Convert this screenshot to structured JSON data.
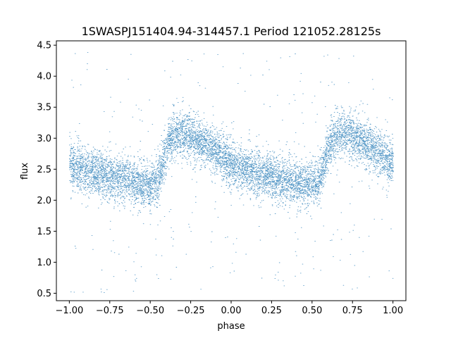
{
  "chart_data": {
    "type": "scatter",
    "title": "1SWASPJ151404.94-314457.1 Period 121052.28125s",
    "xlabel": "phase",
    "ylabel": "flux",
    "xlim": [
      -1.08,
      1.08
    ],
    "ylim": [
      0.38,
      4.57
    ],
    "xticks": [
      -1.0,
      -0.75,
      -0.5,
      -0.25,
      0.0,
      0.25,
      0.5,
      0.75,
      1.0
    ],
    "xtick_labels": [
      "−1.00",
      "−0.75",
      "−0.50",
      "−0.25",
      "0.00",
      "0.25",
      "0.50",
      "0.75",
      "1.00"
    ],
    "yticks": [
      0.5,
      1.0,
      1.5,
      2.0,
      2.5,
      3.0,
      3.5,
      4.0,
      4.5
    ],
    "ytick_labels": [
      "0.5",
      "1.0",
      "1.5",
      "2.0",
      "2.5",
      "3.0",
      "3.5",
      "4.0",
      "4.5"
    ],
    "grid": false,
    "legend": "none",
    "point_color": "#1f77b4",
    "x_range_of_points": [
      -1.0,
      1.0
    ],
    "mean_curve_points": [
      {
        "x": -1.0,
        "y": 2.6
      },
      {
        "x": -0.9,
        "y": 2.48
      },
      {
        "x": -0.75,
        "y": 2.38
      },
      {
        "x": -0.6,
        "y": 2.28
      },
      {
        "x": -0.5,
        "y": 2.22
      },
      {
        "x": -0.45,
        "y": 2.35
      },
      {
        "x": -0.38,
        "y": 3.0
      },
      {
        "x": -0.3,
        "y": 3.08
      },
      {
        "x": -0.2,
        "y": 2.95
      },
      {
        "x": -0.1,
        "y": 2.8
      },
      {
        "x": 0.0,
        "y": 2.6
      },
      {
        "x": 0.1,
        "y": 2.48
      },
      {
        "x": 0.25,
        "y": 2.38
      },
      {
        "x": 0.4,
        "y": 2.28
      },
      {
        "x": 0.5,
        "y": 2.22
      },
      {
        "x": 0.55,
        "y": 2.35
      },
      {
        "x": 0.62,
        "y": 3.0
      },
      {
        "x": 0.7,
        "y": 3.08
      },
      {
        "x": 0.8,
        "y": 2.95
      },
      {
        "x": 0.9,
        "y": 2.8
      },
      {
        "x": 1.0,
        "y": 2.6
      }
    ],
    "scatter_sigma": 0.18,
    "outlier_range": [
      0.5,
      4.4
    ],
    "approx_point_count": 60000
  }
}
